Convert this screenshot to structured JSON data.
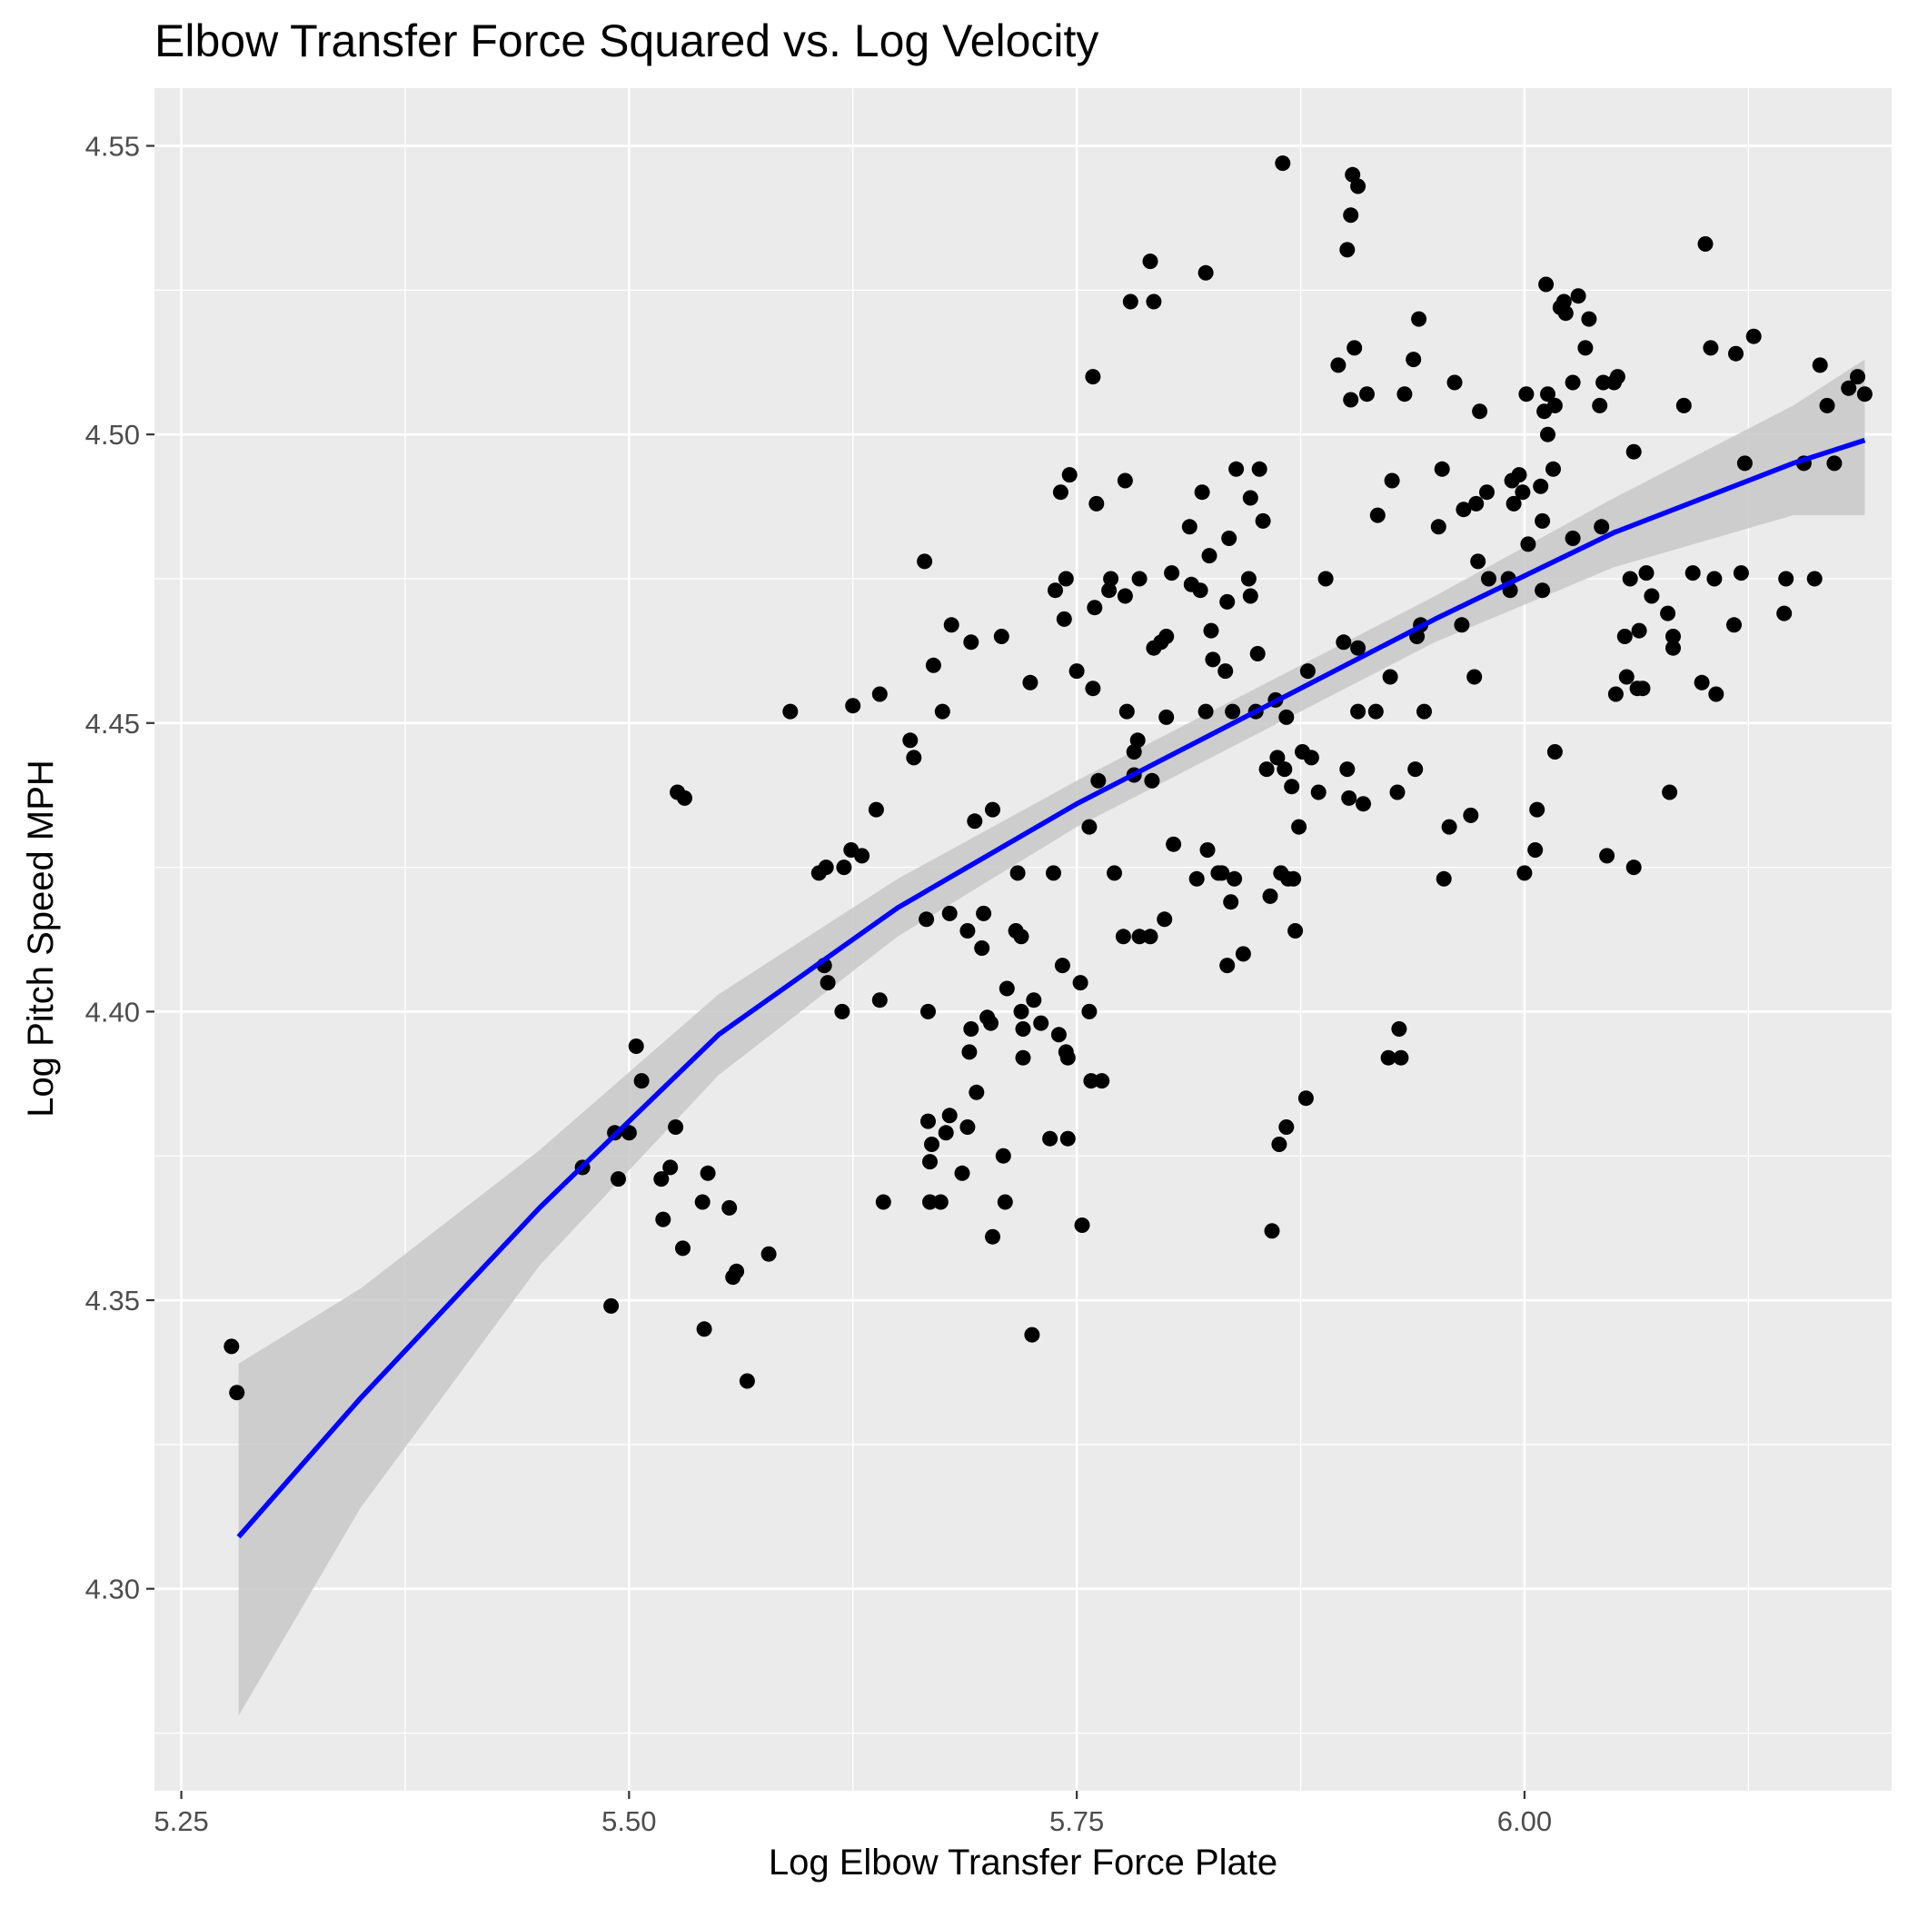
{
  "chart_data": {
    "type": "scatter",
    "title": "Elbow Transfer Force Squared vs. Log Velocity",
    "xlabel": "Log Elbow Transfer Force Plate",
    "ylabel": "Log Pitch Speed MPH",
    "xlim": [
      5.235,
      6.205
    ],
    "ylim": [
      4.265,
      4.56
    ],
    "xticks": [
      5.25,
      5.5,
      5.75,
      6.0
    ],
    "xtick_labels": [
      "5.25",
      "5.50",
      "5.75",
      "6.00"
    ],
    "yticks": [
      4.3,
      4.35,
      4.4,
      4.45,
      4.5,
      4.55
    ],
    "ytick_labels": [
      "4.30",
      "4.35",
      "4.40",
      "4.45",
      "4.50",
      "4.55"
    ],
    "grid": true,
    "colors": {
      "panel": "#ebebeb",
      "grid": "#ffffff",
      "points": "#000000",
      "fit_line": "#0000ff",
      "confidence_band": "#c8c8c8"
    },
    "points": [
      [
        5.278,
        4.342
      ],
      [
        5.281,
        4.334
      ],
      [
        5.474,
        4.373
      ],
      [
        5.49,
        4.349
      ],
      [
        5.492,
        4.379
      ],
      [
        5.494,
        4.371
      ],
      [
        5.5,
        4.379
      ],
      [
        5.504,
        4.394
      ],
      [
        5.507,
        4.388
      ],
      [
        5.518,
        4.371
      ],
      [
        5.519,
        4.364
      ],
      [
        5.523,
        4.373
      ],
      [
        5.526,
        4.38
      ],
      [
        5.527,
        4.438
      ],
      [
        5.53,
        4.359
      ],
      [
        5.531,
        4.437
      ],
      [
        5.541,
        4.367
      ],
      [
        5.542,
        4.345
      ],
      [
        5.544,
        4.372
      ],
      [
        5.556,
        4.366
      ],
      [
        5.558,
        4.354
      ],
      [
        5.56,
        4.355
      ],
      [
        5.566,
        4.336
      ],
      [
        5.578,
        4.358
      ],
      [
        5.59,
        4.452
      ],
      [
        5.606,
        4.424
      ],
      [
        5.609,
        4.408
      ],
      [
        5.61,
        4.425
      ],
      [
        5.611,
        4.405
      ],
      [
        5.619,
        4.4
      ],
      [
        5.62,
        4.425
      ],
      [
        5.624,
        4.428
      ],
      [
        5.625,
        4.453
      ],
      [
        5.63,
        4.427
      ],
      [
        5.638,
        4.435
      ],
      [
        5.64,
        4.455
      ],
      [
        5.64,
        4.402
      ],
      [
        5.642,
        4.367
      ],
      [
        5.657,
        4.447
      ],
      [
        5.659,
        4.444
      ],
      [
        5.665,
        4.478
      ],
      [
        5.666,
        4.416
      ],
      [
        5.667,
        4.4
      ],
      [
        5.667,
        4.381
      ],
      [
        5.668,
        4.374
      ],
      [
        5.668,
        4.367
      ],
      [
        5.669,
        4.377
      ],
      [
        5.67,
        4.46
      ],
      [
        5.674,
        4.367
      ],
      [
        5.675,
        4.452
      ],
      [
        5.677,
        4.379
      ],
      [
        5.679,
        4.382
      ],
      [
        5.679,
        4.417
      ],
      [
        5.68,
        4.467
      ],
      [
        5.686,
        4.372
      ],
      [
        5.689,
        4.414
      ],
      [
        5.689,
        4.38
      ],
      [
        5.69,
        4.393
      ],
      [
        5.691,
        4.397
      ],
      [
        5.691,
        4.464
      ],
      [
        5.693,
        4.433
      ],
      [
        5.694,
        4.386
      ],
      [
        5.697,
        4.411
      ],
      [
        5.698,
        4.417
      ],
      [
        5.7,
        4.399
      ],
      [
        5.702,
        4.398
      ],
      [
        5.703,
        4.435
      ],
      [
        5.703,
        4.361
      ],
      [
        5.708,
        4.465
      ],
      [
        5.709,
        4.375
      ],
      [
        5.71,
        4.367
      ],
      [
        5.711,
        4.404
      ],
      [
        5.716,
        4.414
      ],
      [
        5.717,
        4.424
      ],
      [
        5.719,
        4.413
      ],
      [
        5.719,
        4.4
      ],
      [
        5.72,
        4.397
      ],
      [
        5.72,
        4.392
      ],
      [
        5.724,
        4.457
      ],
      [
        5.725,
        4.344
      ],
      [
        5.726,
        4.402
      ],
      [
        5.73,
        4.398
      ],
      [
        5.735,
        4.378
      ],
      [
        5.737,
        4.424
      ],
      [
        5.738,
        4.473
      ],
      [
        5.74,
        4.396
      ],
      [
        5.741,
        4.49
      ],
      [
        5.742,
        4.408
      ],
      [
        5.743,
        4.468
      ],
      [
        5.744,
        4.475
      ],
      [
        5.744,
        4.393
      ],
      [
        5.745,
        4.392
      ],
      [
        5.745,
        4.378
      ],
      [
        5.746,
        4.493
      ],
      [
        5.75,
        4.459
      ],
      [
        5.752,
        4.405
      ],
      [
        5.753,
        4.363
      ],
      [
        5.757,
        4.4
      ],
      [
        5.757,
        4.432
      ],
      [
        5.758,
        4.388
      ],
      [
        5.759,
        4.51
      ],
      [
        5.759,
        4.456
      ],
      [
        5.76,
        4.47
      ],
      [
        5.761,
        4.488
      ],
      [
        5.762,
        4.44
      ],
      [
        5.764,
        4.388
      ],
      [
        5.768,
        4.473
      ],
      [
        5.769,
        4.475
      ],
      [
        5.771,
        4.424
      ],
      [
        5.776,
        4.413
      ],
      [
        5.777,
        4.492
      ],
      [
        5.777,
        4.472
      ],
      [
        5.778,
        4.452
      ],
      [
        5.78,
        4.523
      ],
      [
        5.782,
        4.445
      ],
      [
        5.782,
        4.441
      ],
      [
        5.784,
        4.447
      ],
      [
        5.785,
        4.475
      ],
      [
        5.785,
        4.413
      ],
      [
        5.791,
        4.413
      ],
      [
        5.791,
        4.53
      ],
      [
        5.792,
        4.44
      ],
      [
        5.793,
        4.523
      ],
      [
        5.793,
        4.463
      ],
      [
        5.797,
        4.464
      ],
      [
        5.799,
        4.416
      ],
      [
        5.8,
        4.465
      ],
      [
        5.8,
        4.451
      ],
      [
        5.803,
        4.476
      ],
      [
        5.804,
        4.429
      ],
      [
        5.813,
        4.484
      ],
      [
        5.814,
        4.474
      ],
      [
        5.817,
        4.423
      ],
      [
        5.819,
        4.473
      ],
      [
        5.82,
        4.49
      ],
      [
        5.822,
        4.452
      ],
      [
        5.822,
        4.528
      ],
      [
        5.823,
        4.428
      ],
      [
        5.824,
        4.479
      ],
      [
        5.825,
        4.466
      ],
      [
        5.826,
        4.461
      ],
      [
        5.829,
        4.424
      ],
      [
        5.831,
        4.424
      ],
      [
        5.833,
        4.459
      ],
      [
        5.834,
        4.471
      ],
      [
        5.834,
        4.408
      ],
      [
        5.835,
        4.482
      ],
      [
        5.836,
        4.419
      ],
      [
        5.837,
        4.452
      ],
      [
        5.838,
        4.423
      ],
      [
        5.839,
        4.494
      ],
      [
        5.843,
        4.41
      ],
      [
        5.846,
        4.475
      ],
      [
        5.847,
        4.489
      ],
      [
        5.847,
        4.472
      ],
      [
        5.85,
        4.452
      ],
      [
        5.851,
        4.462
      ],
      [
        5.852,
        4.494
      ],
      [
        5.854,
        4.485
      ],
      [
        5.856,
        4.442
      ],
      [
        5.858,
        4.42
      ],
      [
        5.859,
        4.362
      ],
      [
        5.861,
        4.454
      ],
      [
        5.862,
        4.444
      ],
      [
        5.863,
        4.377
      ],
      [
        5.864,
        4.424
      ],
      [
        5.865,
        4.547
      ],
      [
        5.866,
        4.442
      ],
      [
        5.867,
        4.38
      ],
      [
        5.867,
        4.451
      ],
      [
        5.868,
        4.423
      ],
      [
        5.87,
        4.439
      ],
      [
        5.871,
        4.423
      ],
      [
        5.872,
        4.414
      ],
      [
        5.874,
        4.432
      ],
      [
        5.876,
        4.445
      ],
      [
        5.878,
        4.385
      ],
      [
        5.879,
        4.459
      ],
      [
        5.881,
        4.444
      ],
      [
        5.885,
        4.438
      ],
      [
        5.889,
        4.475
      ],
      [
        5.896,
        4.512
      ],
      [
        5.899,
        4.464
      ],
      [
        5.901,
        4.442
      ],
      [
        5.901,
        4.532
      ],
      [
        5.902,
        4.437
      ],
      [
        5.903,
        4.538
      ],
      [
        5.903,
        4.506
      ],
      [
        5.904,
        4.545
      ],
      [
        5.905,
        4.515
      ],
      [
        5.907,
        4.463
      ],
      [
        5.907,
        4.452
      ],
      [
        5.907,
        4.543
      ],
      [
        5.91,
        4.436
      ],
      [
        5.912,
        4.507
      ],
      [
        5.917,
        4.452
      ],
      [
        5.918,
        4.486
      ],
      [
        5.924,
        4.392
      ],
      [
        5.925,
        4.458
      ],
      [
        5.926,
        4.492
      ],
      [
        5.929,
        4.438
      ],
      [
        5.93,
        4.397
      ],
      [
        5.931,
        4.392
      ],
      [
        5.933,
        4.507
      ],
      [
        5.938,
        4.513
      ],
      [
        5.939,
        4.442
      ],
      [
        5.94,
        4.465
      ],
      [
        5.941,
        4.52
      ],
      [
        5.942,
        4.467
      ],
      [
        5.944,
        4.452
      ],
      [
        5.952,
        4.484
      ],
      [
        5.954,
        4.494
      ],
      [
        5.955,
        4.423
      ],
      [
        5.958,
        4.432
      ],
      [
        5.961,
        4.509
      ],
      [
        5.965,
        4.467
      ],
      [
        5.966,
        4.487
      ],
      [
        5.97,
        4.434
      ],
      [
        5.972,
        4.458
      ],
      [
        5.973,
        4.488
      ],
      [
        5.974,
        4.478
      ],
      [
        5.975,
        4.504
      ],
      [
        5.979,
        4.49
      ],
      [
        5.98,
        4.475
      ],
      [
        5.991,
        4.475
      ],
      [
        5.992,
        4.473
      ],
      [
        5.993,
        4.492
      ],
      [
        5.994,
        4.488
      ],
      [
        5.997,
        4.493
      ],
      [
        5.999,
        4.49
      ],
      [
        6.0,
        4.424
      ],
      [
        6.001,
        4.507
      ],
      [
        6.002,
        4.481
      ],
      [
        6.006,
        4.428
      ],
      [
        6.007,
        4.435
      ],
      [
        6.009,
        4.491
      ],
      [
        6.01,
        4.485
      ],
      [
        6.01,
        4.473
      ],
      [
        6.011,
        4.504
      ],
      [
        6.012,
        4.526
      ],
      [
        6.013,
        4.5
      ],
      [
        6.013,
        4.507
      ],
      [
        6.016,
        4.494
      ],
      [
        6.017,
        4.505
      ],
      [
        6.017,
        4.445
      ],
      [
        6.02,
        4.522
      ],
      [
        6.022,
        4.523
      ],
      [
        6.023,
        4.521
      ],
      [
        6.027,
        4.509
      ],
      [
        6.027,
        4.482
      ],
      [
        6.03,
        4.524
      ],
      [
        6.034,
        4.515
      ],
      [
        6.036,
        4.52
      ],
      [
        6.042,
        4.505
      ],
      [
        6.043,
        4.484
      ],
      [
        6.044,
        4.509
      ],
      [
        6.046,
        4.427
      ],
      [
        6.05,
        4.509
      ],
      [
        6.051,
        4.455
      ],
      [
        6.052,
        4.51
      ],
      [
        6.056,
        4.465
      ],
      [
        6.057,
        4.458
      ],
      [
        6.059,
        4.475
      ],
      [
        6.061,
        4.497
      ],
      [
        6.061,
        4.425
      ],
      [
        6.063,
        4.456
      ],
      [
        6.064,
        4.466
      ],
      [
        6.066,
        4.456
      ],
      [
        6.068,
        4.476
      ],
      [
        6.071,
        4.472
      ],
      [
        6.08,
        4.469
      ],
      [
        6.081,
        4.438
      ],
      [
        6.083,
        4.465
      ],
      [
        6.083,
        4.463
      ],
      [
        6.089,
        4.505
      ],
      [
        6.094,
        4.476
      ],
      [
        6.099,
        4.457
      ],
      [
        6.101,
        4.533
      ],
      [
        6.104,
        4.515
      ],
      [
        6.106,
        4.475
      ],
      [
        6.107,
        4.455
      ],
      [
        6.117,
        4.467
      ],
      [
        6.118,
        4.514
      ],
      [
        6.121,
        4.476
      ],
      [
        6.123,
        4.495
      ],
      [
        6.128,
        4.517
      ],
      [
        6.145,
        4.469
      ],
      [
        6.146,
        4.475
      ],
      [
        6.156,
        4.495
      ],
      [
        6.162,
        4.475
      ],
      [
        6.165,
        4.512
      ],
      [
        6.169,
        4.505
      ],
      [
        6.173,
        4.495
      ],
      [
        6.181,
        4.508
      ],
      [
        6.186,
        4.51
      ],
      [
        6.19,
        4.507
      ]
    ],
    "fit": {
      "x": [
        5.282,
        5.35,
        5.45,
        5.55,
        5.65,
        5.75,
        5.85,
        5.95,
        6.05,
        6.15,
        6.19
      ],
      "y": [
        4.309,
        4.333,
        4.366,
        4.396,
        4.418,
        4.436,
        4.452,
        4.468,
        4.483,
        4.495,
        4.499
      ],
      "lower": [
        4.278,
        4.314,
        4.356,
        4.389,
        4.413,
        4.432,
        4.448,
        4.464,
        4.477,
        4.486,
        4.486
      ],
      "upper": [
        4.339,
        4.352,
        4.376,
        4.403,
        4.423,
        4.44,
        4.456,
        4.472,
        4.489,
        4.505,
        4.513
      ]
    }
  }
}
